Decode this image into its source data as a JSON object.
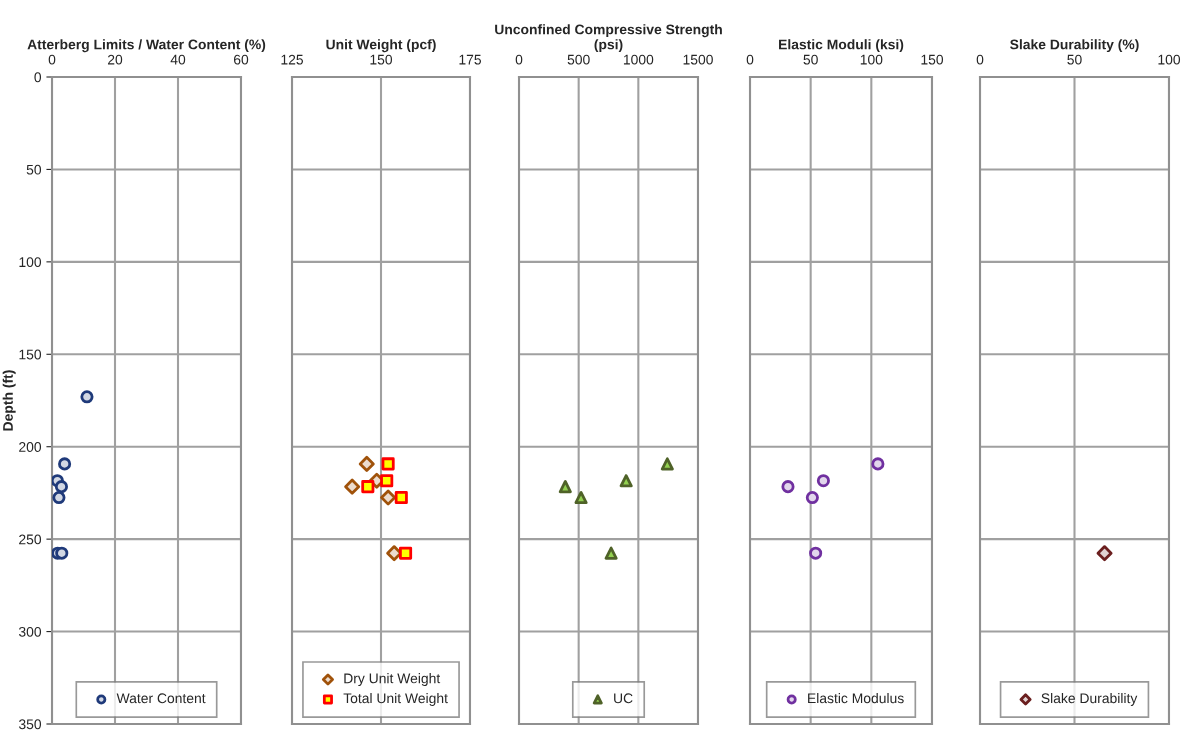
{
  "chart_data": [
    {
      "type": "scatter",
      "title": "Atterberg Limits / Water Content (%)",
      "ylabel": "Depth (ft)",
      "xlim": [
        0,
        60
      ],
      "xticks": [
        0,
        20,
        40,
        60
      ],
      "ylim": [
        350,
        0
      ],
      "yticks": [
        0,
        50,
        100,
        150,
        200,
        250,
        300,
        350
      ],
      "grid": true,
      "legend": "bottom",
      "series": [
        {
          "name": "Water Content",
          "color": "#1f3a7a",
          "marker": "circle",
          "x": [
            11.1,
            4.0,
            1.7,
            3.0,
            2.2,
            1.8,
            3.1
          ],
          "values": [
            173,
            209.3,
            218.4,
            221.6,
            227.5,
            257.6,
            257.6
          ]
        }
      ]
    },
    {
      "type": "scatter",
      "title": "Unit Weight (pcf)",
      "xlim": [
        125,
        175
      ],
      "xticks": [
        125,
        150,
        175
      ],
      "ylim": [
        350,
        0
      ],
      "yticks": [
        0,
        50,
        100,
        150,
        200,
        250,
        300,
        350
      ],
      "grid": true,
      "legend": "bottom",
      "tick_labels": "x",
      "series": [
        {
          "name": "Dry Unit Weight",
          "color": "#a0520a",
          "marker": "diamond",
          "x": [
            146.0,
            148.8,
            141.9,
            152.0,
            153.7
          ],
          "values": [
            209.3,
            218.4,
            221.6,
            227.5,
            257.6
          ]
        },
        {
          "name": "Total Unit Weight",
          "color": "#ff0000",
          "marker": "square",
          "x": [
            152.0,
            151.6,
            146.3,
            155.7,
            156.9
          ],
          "values": [
            209.3,
            218.4,
            221.6,
            227.5,
            257.6
          ]
        }
      ]
    },
    {
      "type": "scatter",
      "title": "Unconfined Compressive Strength (psi)",
      "xlim": [
        0,
        1500
      ],
      "xticks": [
        0,
        500,
        1000,
        1500
      ],
      "ylim": [
        350,
        0
      ],
      "yticks": [
        0,
        50,
        100,
        150,
        200,
        250,
        300,
        350
      ],
      "grid": true,
      "legend": "bottom",
      "tick_labels": "x",
      "series": [
        {
          "name": "UC",
          "color": "#4f6228",
          "marker": "triangle",
          "x": [
            1243,
            898,
            388,
            520,
            772
          ],
          "values": [
            209.3,
            218.4,
            221.6,
            227.5,
            257.6
          ]
        }
      ]
    },
    {
      "type": "scatter",
      "title": "Elastic Moduli (ksi)",
      "xlim": [
        0,
        150
      ],
      "xticks": [
        0,
        50,
        100,
        150
      ],
      "ylim": [
        350,
        0
      ],
      "yticks": [
        0,
        50,
        100,
        150,
        200,
        250,
        300,
        350
      ],
      "grid": true,
      "legend": "bottom",
      "tick_labels": "x",
      "series": [
        {
          "name": "Elastic Modulus",
          "color": "#7030a0",
          "marker": "circle",
          "x": [
            105.4,
            60.5,
            31.3,
            51.4,
            54.1
          ],
          "values": [
            209.3,
            218.4,
            221.6,
            227.5,
            257.6
          ]
        }
      ]
    },
    {
      "type": "scatter",
      "title": "Slake Durability (%)",
      "xlim": [
        0,
        100
      ],
      "xticks": [
        0,
        50,
        100
      ],
      "ylim": [
        350,
        0
      ],
      "yticks": [
        0,
        50,
        100,
        150,
        200,
        250,
        300,
        350
      ],
      "grid": true,
      "legend": "bottom",
      "tick_labels": "x",
      "series": [
        {
          "name": "Slake Durability",
          "color": "#6b1f1f",
          "marker": "diamond",
          "x": [
            65.9
          ],
          "values": [
            257.6
          ]
        }
      ]
    }
  ]
}
